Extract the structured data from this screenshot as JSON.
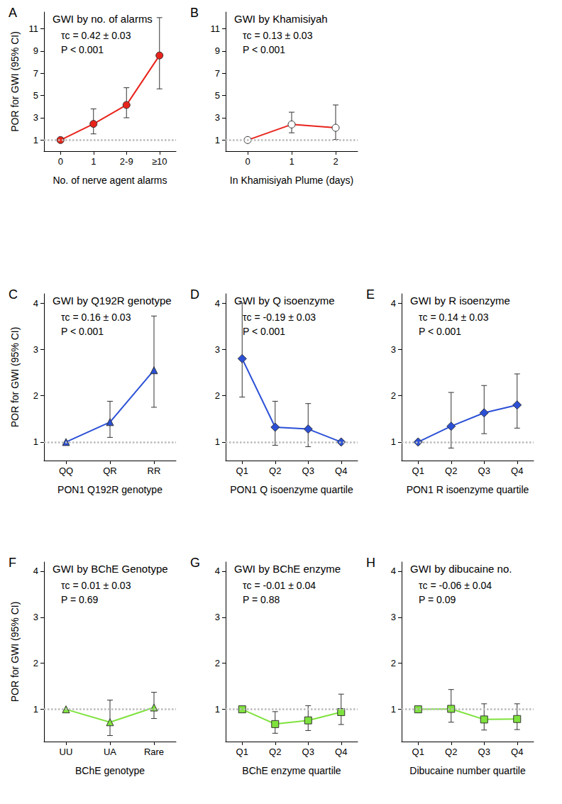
{
  "chart_data": [
    {
      "panel": "A",
      "type": "line",
      "title": "GWI by no. of alarms",
      "annotations": [
        "τc = 0.42 ± 0.03",
        "P < 0.001"
      ],
      "categories": [
        "0",
        "1",
        "2-9",
        "≥10"
      ],
      "values": [
        1,
        2.45,
        4.15,
        8.6
      ],
      "ci_lower": [
        null,
        1.55,
        3.0,
        5.6
      ],
      "ci_upper": [
        null,
        3.8,
        5.7,
        12.0
      ],
      "color": "#e8231b",
      "marker": "circle",
      "xlabel": "No. of nerve agent alarms",
      "ylabel": "POR for GWI (95% CI)",
      "ylim": [
        0,
        12.5
      ],
      "yticks": [
        1,
        3,
        5,
        7,
        9,
        11
      ],
      "reference_line": 1
    },
    {
      "panel": "B",
      "type": "line",
      "title": "GWI by Khamisiyah",
      "annotations": [
        "τc = 0.13 ± 0.03",
        "P < 0.001"
      ],
      "categories": [
        "0",
        "1",
        "2"
      ],
      "values": [
        1,
        2.4,
        2.1
      ],
      "ci_lower": [
        null,
        1.65,
        1.05
      ],
      "ci_upper": [
        null,
        3.5,
        4.15
      ],
      "color": "#e8231b",
      "marker": "open_circle",
      "xlabel": "In Khamisiyah Plume (days)",
      "ylim": [
        0,
        12.5
      ],
      "yticks": [
        1,
        3,
        5,
        7,
        9,
        11
      ],
      "reference_line": 1
    },
    {
      "panel": "C",
      "type": "line",
      "title": "GWI by Q192R genotype",
      "annotations": [
        "τc = 0.16 ± 0.03",
        "P < 0.001"
      ],
      "categories": [
        "QQ",
        "QR",
        "RR"
      ],
      "values": [
        1,
        1.43,
        2.55
      ],
      "ci_lower": [
        null,
        1.1,
        1.75
      ],
      "ci_upper": [
        null,
        1.88,
        3.72
      ],
      "color": "#2b50d6",
      "marker": "triangle",
      "xlabel": "PON1 Q192R genotype",
      "ylabel": "POR for GWI (95% CI)",
      "ylim": [
        0.6,
        4.2
      ],
      "yticks": [
        1,
        2,
        3,
        4
      ],
      "reference_line": 1
    },
    {
      "panel": "D",
      "type": "line",
      "title": "GWI by Q isoenzyme",
      "annotations": [
        "τc = -0.19 ± 0.03",
        "P < 0.001"
      ],
      "categories": [
        "Q1",
        "Q2",
        "Q3",
        "Q4"
      ],
      "values": [
        2.8,
        1.32,
        1.28,
        1.0
      ],
      "ci_lower": [
        1.97,
        0.93,
        0.9,
        null
      ],
      "ci_upper": [
        4.0,
        1.88,
        1.83,
        null
      ],
      "color": "#2b50d6",
      "marker": "diamond",
      "xlabel": "PON1 Q isoenzyme quartile",
      "ylim": [
        0.6,
        4.2
      ],
      "yticks": [
        1,
        2,
        3,
        4
      ],
      "reference_line": 1
    },
    {
      "panel": "E",
      "type": "line",
      "title": "GWI by R isoenzyme",
      "annotations": [
        "τc = 0.14 ± 0.03",
        "P < 0.001"
      ],
      "categories": [
        "Q1",
        "Q2",
        "Q3",
        "Q4"
      ],
      "values": [
        1.0,
        1.34,
        1.63,
        1.8
      ],
      "ci_lower": [
        null,
        0.87,
        1.18,
        1.3
      ],
      "ci_upper": [
        null,
        2.07,
        2.22,
        2.47
      ],
      "color": "#2b50d6",
      "marker": "diamond",
      "xlabel": "PON1 R isoenzyme quartile",
      "ylim": [
        0.6,
        4.2
      ],
      "yticks": [
        1,
        2,
        3,
        4
      ],
      "reference_line": 1
    },
    {
      "panel": "F",
      "type": "line",
      "title": "GWI by BChE Genotype",
      "annotations": [
        "τc = 0.01 ± 0.03",
        "P = 0.69"
      ],
      "categories": [
        "UU",
        "UA",
        "Rare"
      ],
      "values": [
        1,
        0.72,
        1.04
      ],
      "ci_lower": [
        null,
        0.43,
        0.8
      ],
      "ci_upper": [
        null,
        1.2,
        1.37
      ],
      "color": "#7ee23c",
      "marker": "triangle",
      "xlabel": "BChE genotype",
      "ylabel": "POR for GWI (95% CI)",
      "ylim": [
        0.3,
        4.2
      ],
      "yticks": [
        1,
        2,
        3,
        4
      ],
      "reference_line": 1
    },
    {
      "panel": "G",
      "type": "line",
      "title": "GWI by BChE enzyme",
      "annotations": [
        "τc = -0.01 ± 0.04",
        "P = 0.88"
      ],
      "categories": [
        "Q1",
        "Q2",
        "Q3",
        "Q4"
      ],
      "values": [
        1,
        0.68,
        0.76,
        0.94
      ],
      "ci_lower": [
        null,
        0.48,
        0.54,
        0.67
      ],
      "ci_upper": [
        null,
        0.95,
        1.08,
        1.33
      ],
      "color": "#7ee23c",
      "marker": "rect",
      "xlabel": "BChE enzyme quartile",
      "ylim": [
        0.3,
        4.2
      ],
      "yticks": [
        1,
        2,
        3,
        4
      ],
      "reference_line": 1
    },
    {
      "panel": "H",
      "type": "line",
      "title": "GWI by dibucaine no.",
      "annotations": [
        "τc = -0.06 ± 0.04",
        "P = 0.09"
      ],
      "categories": [
        "Q1",
        "Q2",
        "Q3",
        "Q4"
      ],
      "values": [
        1,
        1.01,
        0.78,
        0.79
      ],
      "ci_lower": [
        null,
        0.72,
        0.55,
        0.56
      ],
      "ci_upper": [
        null,
        1.43,
        1.12,
        1.12
      ],
      "color": "#7ee23c",
      "marker": "rect",
      "xlabel": "Dibucaine number quartile",
      "ylim": [
        0.3,
        4.2
      ],
      "yticks": [
        1,
        2,
        3,
        4
      ],
      "reference_line": 1
    }
  ]
}
